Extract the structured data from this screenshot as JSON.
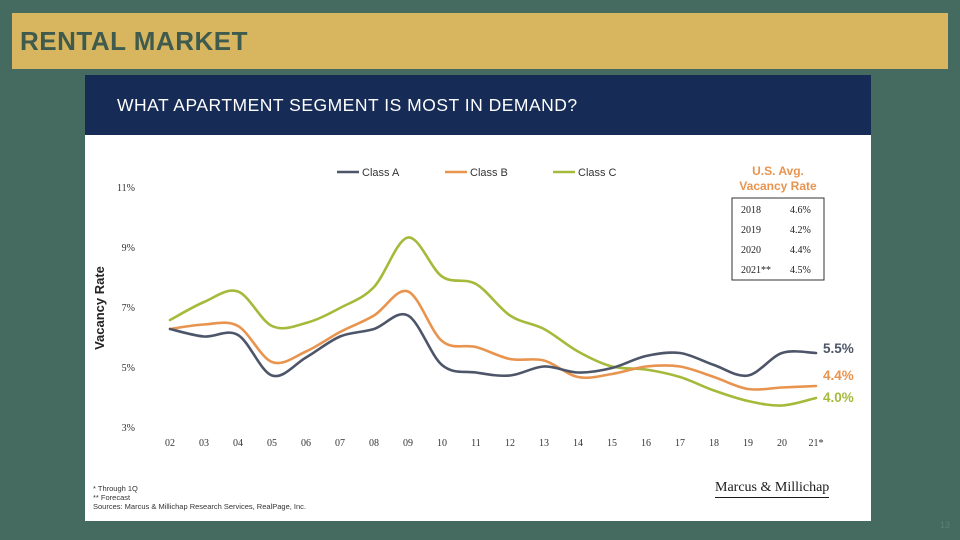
{
  "banner": {
    "title": "RENTAL MARKET"
  },
  "card": {
    "title": "WHAT APARTMENT SEGMENT IS MOST IN DEMAND?"
  },
  "colors": {
    "background": "#456a5f",
    "banner": "#d8b55f",
    "banner_text": "#3f5b4e",
    "header": "#172b57",
    "class_a": "#4d5568",
    "class_b": "#e8944f",
    "class_c": "#a4ba3a"
  },
  "chart_data": {
    "type": "line",
    "ylabel": "Vacancy Rate",
    "ylim": [
      3,
      11
    ],
    "yticks": [
      "11%",
      "9%",
      "7%",
      "5%",
      "3%"
    ],
    "ytick_values": [
      11,
      9,
      7,
      5,
      3
    ],
    "categories": [
      "02",
      "03",
      "04",
      "05",
      "06",
      "07",
      "08",
      "09",
      "10",
      "11",
      "12",
      "13",
      "14",
      "15",
      "16",
      "17",
      "18",
      "19",
      "20",
      "21*"
    ],
    "legend_position": "top-center",
    "grid": false,
    "series": [
      {
        "name": "Class A",
        "key": "class_a",
        "end_label": "5.5%",
        "values": [
          6.3,
          6.05,
          6.1,
          4.75,
          5.35,
          6.05,
          6.3,
          6.75,
          5.1,
          4.85,
          4.75,
          5.05,
          4.85,
          5.0,
          5.4,
          5.5,
          5.1,
          4.75,
          5.5,
          5.5
        ]
      },
      {
        "name": "Class B",
        "key": "class_b",
        "end_label": "4.4%",
        "values": [
          6.3,
          6.45,
          6.4,
          5.2,
          5.55,
          6.2,
          6.75,
          7.55,
          5.9,
          5.7,
          5.3,
          5.25,
          4.7,
          4.8,
          5.05,
          5.05,
          4.7,
          4.3,
          4.35,
          4.4
        ]
      },
      {
        "name": "Class C",
        "key": "class_c",
        "end_label": "4.0%",
        "values": [
          6.6,
          7.2,
          7.55,
          6.4,
          6.5,
          7.0,
          7.7,
          9.35,
          8.05,
          7.8,
          6.75,
          6.3,
          5.55,
          5.05,
          4.95,
          4.7,
          4.25,
          3.9,
          3.75,
          4.0
        ]
      }
    ],
    "vacancy_table": {
      "title_line1": "U.S. Avg.",
      "title_line2": "Vacancy Rate",
      "rows": [
        {
          "year": "2018",
          "rate": "4.6%"
        },
        {
          "year": "2019",
          "rate": "4.2%"
        },
        {
          "year": "2020",
          "rate": "4.4%"
        },
        {
          "year": "2021**",
          "rate": "4.5%"
        }
      ]
    }
  },
  "footnotes": {
    "line1": "* Through 1Q",
    "line2": "** Forecast",
    "line3": "Sources: Marcus & Millichap Research Services, RealPage, Inc."
  },
  "logo": {
    "text": "Marcus & Millichap"
  },
  "page_number": "13"
}
